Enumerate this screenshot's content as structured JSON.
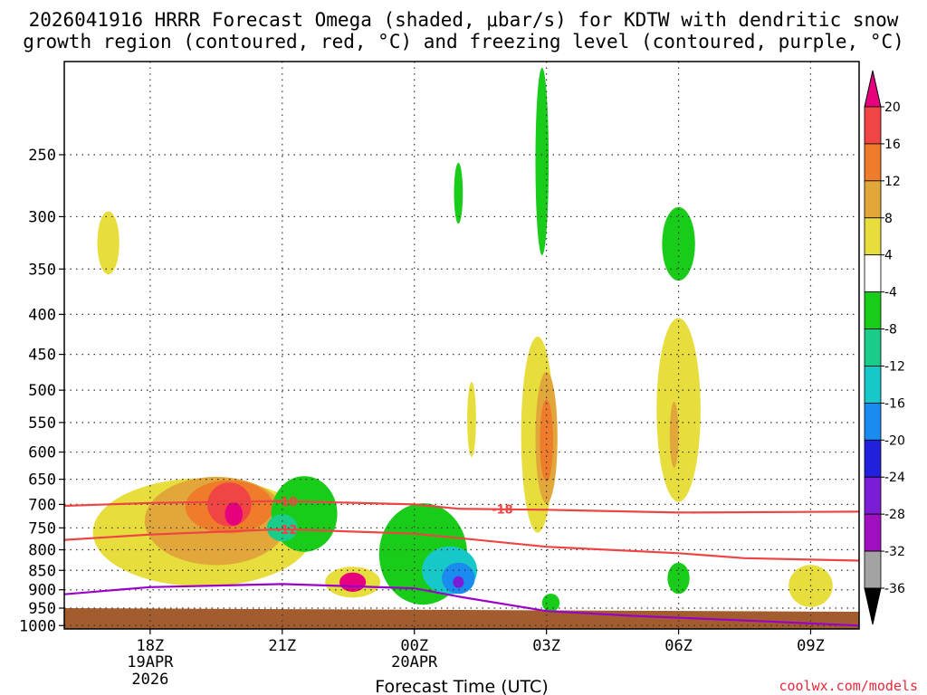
{
  "chart_data": {
    "type": "heatmap",
    "title_line1": "2026041916 HRRR Forecast Omega (shaded, μbar/s) for KDTW with dendritic snow",
    "title_line2": "growth region (contoured, red, °C) and freezing level (contoured, purple, °C)",
    "xlabel": "Forecast Time (UTC)",
    "ylabel": "",
    "credit": "coolwx.com/models",
    "x_range_hours": [
      -1.95,
      16.1
    ],
    "y_range_hPa": [
      1010,
      190
    ],
    "x_ticks": [
      {
        "h": 0,
        "label": "18Z",
        "sub1": "19APR",
        "sub2": "2026"
      },
      {
        "h": 3,
        "label": "21Z",
        "sub1": "",
        "sub2": ""
      },
      {
        "h": 6,
        "label": "00Z",
        "sub1": "20APR",
        "sub2": ""
      },
      {
        "h": 9,
        "label": "03Z",
        "sub1": "",
        "sub2": ""
      },
      {
        "h": 12,
        "label": "06Z",
        "sub1": "",
        "sub2": ""
      },
      {
        "h": 15,
        "label": "09Z",
        "sub1": "",
        "sub2": ""
      }
    ],
    "y_ticks": [
      250,
      300,
      350,
      400,
      450,
      500,
      550,
      600,
      650,
      700,
      750,
      800,
      850,
      900,
      950,
      1000
    ],
    "colorbar": {
      "labels": [
        "20",
        "16",
        "12",
        "8",
        "4",
        "-4",
        "-8",
        "-12",
        "-16",
        "-20",
        "-24",
        "-28",
        "-32",
        "-36"
      ],
      "bins": [
        {
          "range": "above 20",
          "color": "#e6007e"
        },
        {
          "range": "16 to 20",
          "color": "#f14444"
        },
        {
          "range": "12 to 16",
          "color": "#ee7c2a"
        },
        {
          "range": "8 to 12",
          "color": "#e2a73a"
        },
        {
          "range": "4 to 8",
          "color": "#e7dd3c"
        },
        {
          "range": "-4 to 4",
          "color": "#ffffff"
        },
        {
          "range": "-8 to -4",
          "color": "#19cc19"
        },
        {
          "range": "-12 to -8",
          "color": "#19cc8a"
        },
        {
          "range": "-16 to -12",
          "color": "#17c8c8"
        },
        {
          "range": "-20 to -16",
          "color": "#1a8cf0"
        },
        {
          "range": "-24 to -20",
          "color": "#2020dd"
        },
        {
          "range": "-28 to -24",
          "color": "#7b1cd6"
        },
        {
          "range": "-32 to -28",
          "color": "#a010c0"
        },
        {
          "range": "-36 to -32",
          "color": "#a3a3a3"
        },
        {
          "range": "below -36",
          "color": "#000000"
        }
      ]
    },
    "series": [
      {
        "name": "-18 °C isotherm (dendritic growth top)",
        "color": "#ee4444",
        "label": "-18",
        "points": [
          [
            -1.95,
            703
          ],
          [
            0,
            697
          ],
          [
            3,
            693
          ],
          [
            6,
            700
          ],
          [
            7,
            709
          ],
          [
            9,
            711
          ],
          [
            12,
            717
          ],
          [
            16.1,
            715
          ]
        ]
      },
      {
        "name": "-12 °C isotherm (dendritic growth bottom)",
        "color": "#ee4444",
        "label": "-12",
        "points": [
          [
            -1.95,
            777
          ],
          [
            0,
            765
          ],
          [
            3,
            753
          ],
          [
            6,
            763
          ],
          [
            9,
            793
          ],
          [
            12,
            808
          ],
          [
            13.5,
            820
          ],
          [
            16.1,
            826
          ]
        ]
      },
      {
        "name": "0 °C freezing level",
        "color": "#9a00c8",
        "label": "",
        "points": [
          [
            -1.95,
            912
          ],
          [
            0,
            893
          ],
          [
            3,
            885
          ],
          [
            6,
            896
          ],
          [
            7,
            918
          ],
          [
            9,
            958
          ],
          [
            11,
            972
          ],
          [
            14,
            988
          ],
          [
            16.1,
            1000
          ]
        ]
      }
    ],
    "regions": [
      {
        "bin": "4 to 8",
        "x": 17.05,
        "p": 324,
        "rx": 1.0,
        "rp": 30
      },
      {
        "bin": "4 to 8",
        "x": 19.2,
        "p": 760,
        "rx": 10.0,
        "rp": 120
      },
      {
        "bin": "8 to 12",
        "x": 19.5,
        "p": 735,
        "rx": 6.5,
        "rp": 95
      },
      {
        "bin": "12 to 16",
        "x": 19.8,
        "p": 705,
        "rx": 4.0,
        "rp": 55
      },
      {
        "bin": "16 to 20",
        "x": 19.8,
        "p": 700,
        "rx": 2.0,
        "rp": 45
      },
      {
        "bin": "above 20",
        "x": 19.9,
        "p": 720,
        "rx": 0.8,
        "rp": 25
      },
      {
        "bin": "-8 to -4",
        "x": 21.5,
        "p": 720,
        "rx": 3.0,
        "rp": 80
      },
      {
        "bin": "-12 to -8",
        "x": 21.0,
        "p": 750,
        "rx": 1.4,
        "rp": 30
      },
      {
        "bin": "4 to 8",
        "x": 22.6,
        "p": 880,
        "rx": 2.5,
        "rp": 40
      },
      {
        "bin": "above 20",
        "x": 22.6,
        "p": 880,
        "rx": 1.2,
        "rp": 25
      },
      {
        "bin": "-8 to -4",
        "x": 24.2,
        "p": 810,
        "rx": 4.0,
        "rp": 120
      },
      {
        "bin": "-16 to -12",
        "x": 24.8,
        "p": 850,
        "rx": 2.5,
        "rp": 60
      },
      {
        "bin": "-20 to -16",
        "x": 25.0,
        "p": 870,
        "rx": 1.5,
        "rp": 40
      },
      {
        "bin": "-28 to -24",
        "x": 25.0,
        "p": 880,
        "rx": 0.5,
        "rp": 15
      },
      {
        "bin": "-8 to -4",
        "x": 25.0,
        "p": 280,
        "rx": 0.4,
        "rp": 25
      },
      {
        "bin": "4 to 8",
        "x": 25.3,
        "p": 545,
        "rx": 0.4,
        "rp": 60
      },
      {
        "bin": "4 to 8",
        "x": 26.8,
        "p": 570,
        "rx": 1.5,
        "rp": 160
      },
      {
        "bin": "8 to 12",
        "x": 27.0,
        "p": 575,
        "rx": 1.0,
        "rp": 110
      },
      {
        "bin": "12 to 16",
        "x": 27.0,
        "p": 580,
        "rx": 0.6,
        "rp": 70
      },
      {
        "bin": "-8 to -4",
        "x": 26.9,
        "p": 255,
        "rx": 0.6,
        "rp": 75
      },
      {
        "bin": "-8 to -4",
        "x": 27.1,
        "p": 935,
        "rx": 0.8,
        "rp": 25
      },
      {
        "bin": "4 to 8",
        "x": 30.0,
        "p": 530,
        "rx": 2.0,
        "rp": 140
      },
      {
        "bin": "8 to 12",
        "x": 29.9,
        "p": 570,
        "rx": 0.4,
        "rp": 55
      },
      {
        "bin": "-8 to -4",
        "x": 30.0,
        "p": 325,
        "rx": 1.5,
        "rp": 35
      },
      {
        "bin": "-8 to -4",
        "x": 30.0,
        "p": 870,
        "rx": 1.0,
        "rp": 40
      },
      {
        "bin": "4 to 8",
        "x": 33.0,
        "p": 890,
        "rx": 2.0,
        "rp": 55
      }
    ]
  }
}
